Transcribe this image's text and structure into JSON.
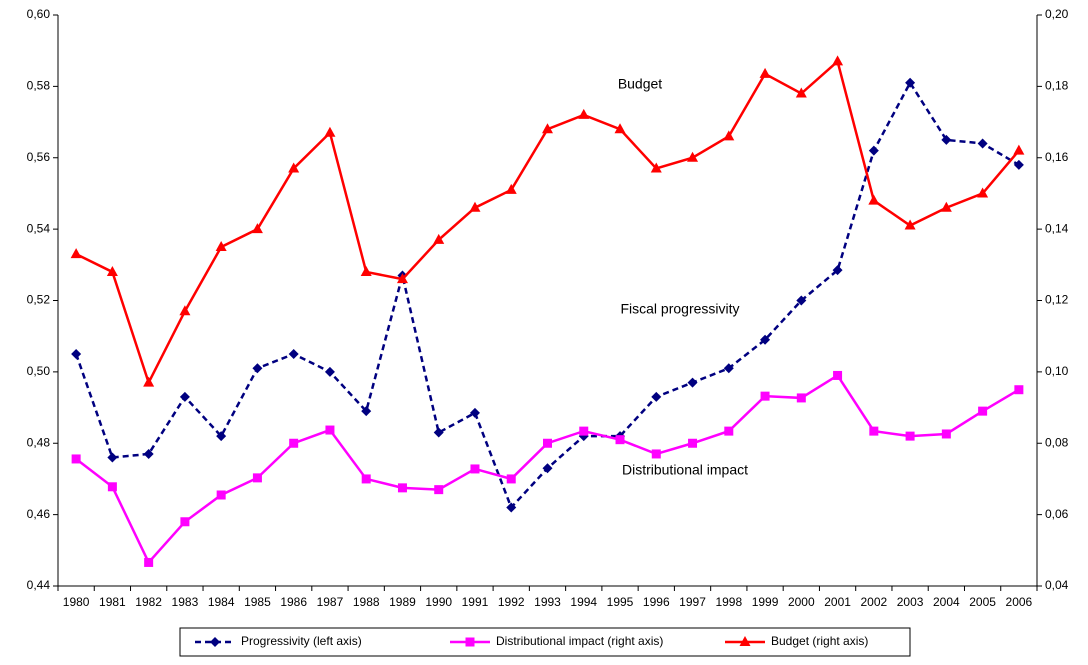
{
  "chart_data": {
    "type": "line",
    "categories": [
      "1980",
      "1981",
      "1982",
      "1983",
      "1984",
      "1985",
      "1986",
      "1987",
      "1988",
      "1989",
      "1990",
      "1991",
      "1992",
      "1993",
      "1994",
      "1995",
      "1996",
      "1997",
      "1998",
      "1999",
      "2000",
      "2001",
      "2002",
      "2003",
      "2004",
      "2005",
      "2006"
    ],
    "series": [
      {
        "name": "Progressivity (left axis)",
        "color": "#000080",
        "marker": "diamond",
        "dash": true,
        "values": [
          0.505,
          0.476,
          0.477,
          0.493,
          0.482,
          0.501,
          0.505,
          0.5,
          0.489,
          0.527,
          0.483,
          0.4885,
          0.462,
          0.473,
          0.482,
          0.482,
          0.493,
          0.497,
          0.501,
          0.509,
          0.52,
          0.5285,
          0.562,
          0.581,
          0.565,
          0.564,
          0.558
        ]
      },
      {
        "name": "Distributional impact (right axis)",
        "color": "#ff00ff",
        "marker": "square",
        "axis": "y2",
        "values": [
          0.0756,
          0.0678,
          0.0466,
          0.058,
          0.0655,
          0.0703,
          0.08,
          0.0837,
          0.07,
          0.0675,
          0.067,
          0.0728,
          0.07,
          0.08,
          0.0834,
          0.081,
          0.077,
          0.08,
          0.0834,
          0.0932,
          0.0927,
          0.099,
          0.0834,
          0.082,
          0.0826,
          0.089,
          0.095
        ]
      },
      {
        "name": "Budget (right axis)",
        "color": "#ff0000",
        "marker": "triangle",
        "axis": "y2",
        "values": [
          0.133,
          0.128,
          0.097,
          0.117,
          0.135,
          0.14,
          0.157,
          0.167,
          0.128,
          0.126,
          0.137,
          0.146,
          0.151,
          0.168,
          0.172,
          0.168,
          0.157,
          0.16,
          0.166,
          0.1835,
          0.178,
          0.187,
          0.148,
          0.141,
          0.146,
          0.15,
          0.162
        ]
      }
    ],
    "ylim": [
      0.44,
      0.6
    ],
    "yticks": [
      {
        "value": 0.44,
        "label": "0,44"
      },
      {
        "value": 0.46,
        "label": "0,46"
      },
      {
        "value": 0.48,
        "label": "0,48"
      },
      {
        "value": 0.5,
        "label": "0,50"
      },
      {
        "value": 0.52,
        "label": "0,52"
      },
      {
        "value": 0.54,
        "label": "0,54"
      },
      {
        "value": 0.56,
        "label": "0,56"
      },
      {
        "value": 0.58,
        "label": "0,58"
      },
      {
        "value": 0.6,
        "label": "0,60"
      }
    ],
    "y2lim": [
      0.04,
      0.2
    ],
    "y2ticks": [
      {
        "value": 0.04,
        "label": "0,04"
      },
      {
        "value": 0.06,
        "label": "0,06"
      },
      {
        "value": 0.08,
        "label": "0,08"
      },
      {
        "value": 0.1,
        "label": "0,10"
      },
      {
        "value": 0.12,
        "label": "0,12"
      },
      {
        "value": 0.14,
        "label": "0,14"
      },
      {
        "value": 0.16,
        "label": "0,16"
      },
      {
        "value": 0.18,
        "label": "0,18"
      },
      {
        "value": 0.2,
        "label": "0,20"
      }
    ],
    "annotations": [
      "Budget",
      "Fiscal progressivity",
      "Distributional impact"
    ],
    "legend": "bottom"
  }
}
